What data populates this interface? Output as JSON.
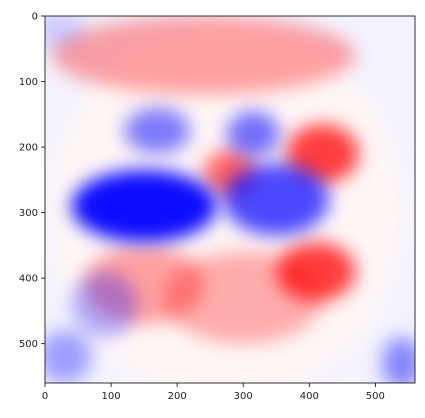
{
  "chart_data": {
    "type": "heatmap",
    "title": "",
    "xlabel": "",
    "ylabel": "",
    "colormap": "bwr",
    "colors": {
      "negative": "#0000ff",
      "zero": "#ffffff",
      "positive": "#ff0000"
    },
    "xlim": [
      0,
      560
    ],
    "ylim": [
      560,
      0
    ],
    "x_ticks": [
      0,
      100,
      200,
      300,
      400,
      500
    ],
    "y_ticks": [
      0,
      100,
      200,
      300,
      400,
      500
    ],
    "x_tick_labels": [
      "0",
      "100",
      "200",
      "300",
      "400",
      "500"
    ],
    "y_tick_labels": [
      "0",
      "100",
      "200",
      "300",
      "400",
      "500"
    ],
    "grid": false,
    "legend": "none",
    "regions": [
      {
        "kind": "positive",
        "cx": 240,
        "cy": 60,
        "rx": 230,
        "ry": 60,
        "intensity": 0.35
      },
      {
        "kind": "positive",
        "cx": 420,
        "cy": 210,
        "rx": 55,
        "ry": 45,
        "intensity": 0.75
      },
      {
        "kind": "positive",
        "cx": 280,
        "cy": 240,
        "rx": 40,
        "ry": 35,
        "intensity": 0.6
      },
      {
        "kind": "positive",
        "cx": 410,
        "cy": 390,
        "rx": 60,
        "ry": 45,
        "intensity": 0.75
      },
      {
        "kind": "positive",
        "cx": 150,
        "cy": 410,
        "rx": 90,
        "ry": 60,
        "intensity": 0.35
      },
      {
        "kind": "positive",
        "cx": 300,
        "cy": 430,
        "rx": 120,
        "ry": 70,
        "intensity": 0.3
      },
      {
        "kind": "negative",
        "cx": 150,
        "cy": 290,
        "rx": 110,
        "ry": 55,
        "intensity": 0.95
      },
      {
        "kind": "negative",
        "cx": 170,
        "cy": 175,
        "rx": 50,
        "ry": 35,
        "intensity": 0.5
      },
      {
        "kind": "negative",
        "cx": 350,
        "cy": 280,
        "rx": 80,
        "ry": 55,
        "intensity": 0.7
      },
      {
        "kind": "negative",
        "cx": 315,
        "cy": 180,
        "rx": 40,
        "ry": 35,
        "intensity": 0.55
      },
      {
        "kind": "negative",
        "cx": 90,
        "cy": 440,
        "rx": 50,
        "ry": 50,
        "intensity": 0.3
      },
      {
        "kind": "negative",
        "cx": 30,
        "cy": 520,
        "rx": 40,
        "ry": 40,
        "intensity": 0.35
      },
      {
        "kind": "negative",
        "cx": 540,
        "cy": 530,
        "rx": 30,
        "ry": 40,
        "intensity": 0.45
      },
      {
        "kind": "negative",
        "cx": 20,
        "cy": 20,
        "rx": 40,
        "ry": 30,
        "intensity": 0.15
      }
    ]
  }
}
